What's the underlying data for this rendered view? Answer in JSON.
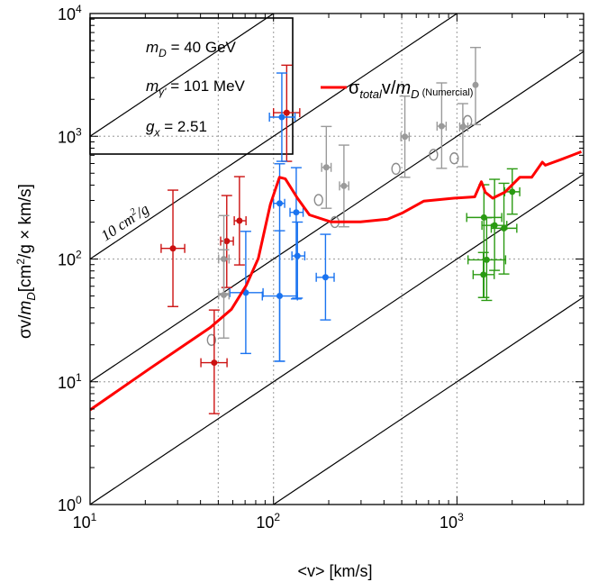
{
  "chart_data": {
    "type": "scatter",
    "xscale": "log",
    "yscale": "log",
    "xlim": [
      10,
      4900
    ],
    "ylim": [
      1,
      10000
    ],
    "grid": "dotted at major decades and at 50, 500",
    "xlabel": {
      "main": "<v> [km/s]"
    },
    "ylabel": {
      "a": "σv/",
      "m": "m",
      "sub": "D",
      "b": "[cm",
      "sup": "2",
      "c": "/g × km/s]"
    },
    "xticks": [
      {
        "value": 10,
        "base": "10",
        "exp": "1"
      },
      {
        "value": 100,
        "base": "10",
        "exp": "2"
      },
      {
        "value": 1000,
        "base": "10",
        "exp": "3"
      }
    ],
    "yticks": [
      {
        "value": 1,
        "base": "10",
        "exp": "0"
      },
      {
        "value": 10,
        "base": "10",
        "exp": "1"
      },
      {
        "value": 100,
        "base": "10",
        "exp": "2"
      },
      {
        "value": 1000,
        "base": "10",
        "exp": "3"
      },
      {
        "value": 10000,
        "base": "10",
        "exp": "4"
      }
    ],
    "reference_lines": {
      "sigma_over_m": [
        100,
        10,
        1,
        0.1,
        0.01
      ],
      "label": {
        "num": "10 cm",
        "sup": "2",
        "rest": "/g"
      }
    },
    "parameters_box": {
      "mD": {
        "sym": "m",
        "sub": "D",
        "text": " = 40 GeV"
      },
      "mgamma": {
        "sym": "m",
        "sub": "γ'",
        "text": " = 101 MeV"
      },
      "gx": {
        "sym": "g",
        "sub": "x",
        "text": " = 2.51"
      }
    },
    "legend": {
      "placement": "top-center",
      "sym": "σ",
      "sub1": "total",
      "mid": "v/",
      "m": "m",
      "sub2": "D",
      "note": " (Numercial)"
    },
    "curve": {
      "color": "#ff0000",
      "x": [
        10,
        21.3,
        45.2,
        58.9,
        71.1,
        82.6,
        96.1,
        107.7,
        116,
        135,
        157,
        205,
        298,
        419,
        506,
        658,
        959,
        1250,
        1358,
        1427,
        1567,
        1822,
        2198,
        2556,
        2920,
        3033,
        3730,
        4765
      ],
      "y": [
        5.9,
        12.9,
        27.7,
        38.9,
        61.0,
        101,
        279,
        463,
        451,
        313,
        229,
        201,
        201,
        211,
        238,
        296,
        313,
        321,
        426,
        350,
        313,
        350,
        463,
        463,
        615,
        581,
        650,
        748
      ]
    },
    "point_groups": [
      {
        "color": "#cc1111",
        "points": [
          {
            "x": 28.3,
            "y": 122,
            "ylo": 41,
            "yhi": 364,
            "xlo": 24.4,
            "xhi": 32.8
          },
          {
            "x": 55.6,
            "y": 140,
            "ylo": 58.6,
            "yhi": 329,
            "xlo": 51.5,
            "xhi": 60.4
          },
          {
            "x": 65.2,
            "y": 205,
            "ylo": 89.5,
            "yhi": 469,
            "xlo": 61.1,
            "xhi": 70.8
          },
          {
            "x": 47.5,
            "y": 14.3,
            "ylo": 5.5,
            "yhi": 38.4,
            "xlo": 40.2,
            "xhi": 55.8
          },
          {
            "x": 118,
            "y": 1556,
            "ylo": 625,
            "yhi": 3793,
            "xlo": 100,
            "xhi": 139
          }
        ]
      },
      {
        "color": "#1a73f0",
        "points": [
          {
            "x": 111,
            "y": 1432,
            "ylo": 625,
            "yhi": 3275,
            "xlo": 95,
            "xhi": 131
          },
          {
            "x": 108,
            "y": 284,
            "ylo": 14.7,
            "yhi": 597,
            "xlo": 100,
            "xhi": 115
          },
          {
            "x": 133,
            "y": 240,
            "ylo": 47.3,
            "yhi": 555,
            "xlo": 123,
            "xhi": 145
          },
          {
            "x": 135,
            "y": 106,
            "ylo": 48,
            "yhi": 200,
            "xlo": 126,
            "xhi": 148
          },
          {
            "x": 192,
            "y": 71,
            "ylo": 31.9,
            "yhi": 159,
            "xlo": 171,
            "xhi": 214
          },
          {
            "x": 108,
            "y": 50,
            "ylo": 14.7,
            "yhi": 170,
            "xlo": 86.9,
            "xhi": 135
          },
          {
            "x": 70.6,
            "y": 53.2,
            "ylo": 17,
            "yhi": 168,
            "xlo": 57.8,
            "xhi": 87.7
          }
        ]
      },
      {
        "color": "#9a9a9a",
        "points": [
          {
            "x": 53.6,
            "y": 100,
            "ylo": 52.3,
            "yhi": 226,
            "xlo": 50.2,
            "xhi": 57.2
          },
          {
            "x": 53.6,
            "y": 51,
            "ylo": 22.7,
            "yhi": 119,
            "xlo": 50.2,
            "xhi": 57.2
          },
          {
            "x": 194,
            "y": 558,
            "ylo": 259,
            "yhi": 1202,
            "xlo": 183,
            "xhi": 206
          },
          {
            "x": 242,
            "y": 394,
            "ylo": 183,
            "yhi": 847,
            "xlo": 229,
            "xhi": 257
          },
          {
            "x": 520,
            "y": 991,
            "ylo": 463,
            "yhi": 2123,
            "xlo": 495,
            "xhi": 549
          },
          {
            "x": 825,
            "y": 1208,
            "ylo": 548,
            "yhi": 2721,
            "xlo": 779,
            "xhi": 873
          },
          {
            "x": 1076,
            "y": 1189,
            "ylo": 565,
            "yhi": 1845,
            "xlo": 1035,
            "xhi": 1146
          },
          {
            "x": 1262,
            "y": 2618,
            "ylo": 1244,
            "yhi": 5289
          }
        ]
      },
      {
        "color": "#2a9a12",
        "points": [
          {
            "x": 1403,
            "y": 218,
            "ylo": 48.6,
            "yhi": 403,
            "xlo": 1130,
            "xhi": 1754
          },
          {
            "x": 1603,
            "y": 188,
            "ylo": 80.8,
            "yhi": 446,
            "xlo": 1368,
            "xhi": 1869
          },
          {
            "x": 1803,
            "y": 178,
            "ylo": 75.5,
            "yhi": 414,
            "xlo": 1538,
            "xhi": 2119
          },
          {
            "x": 2001,
            "y": 353,
            "ylo": 232,
            "yhi": 543,
            "xlo": 1820,
            "xhi": 2198
          },
          {
            "x": 1452,
            "y": 98.5,
            "ylo": 46,
            "yhi": 217,
            "xlo": 1149,
            "xhi": 1841
          },
          {
            "x": 1393,
            "y": 74.6,
            "ylo": 48.6,
            "yhi": 113,
            "xlo": 1225,
            "xhi": 1596
          }
        ]
      }
    ],
    "open_circles": {
      "color": "#8a8a8a",
      "points": [
        {
          "x": 45.9,
          "y": 21.9
        },
        {
          "x": 176,
          "y": 303
        },
        {
          "x": 216,
          "y": 200
        },
        {
          "x": 465,
          "y": 543
        },
        {
          "x": 745,
          "y": 707
        },
        {
          "x": 966,
          "y": 661
        },
        {
          "x": 1143,
          "y": 1330
        }
      ]
    }
  }
}
